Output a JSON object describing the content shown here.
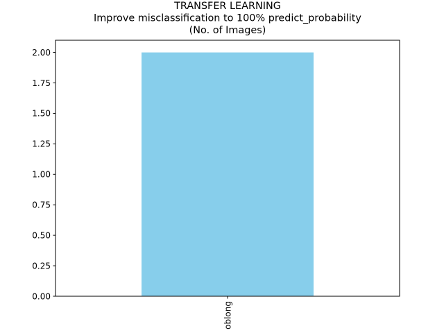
{
  "chart_data": {
    "type": "bar",
    "title_lines": [
      "TRANSFER LEARNING",
      "Improve misclassification to 100% predict_probability",
      "(No. of Images)"
    ],
    "categories": [
      "oblong"
    ],
    "values": [
      2.0
    ],
    "xlabel": "",
    "ylabel": "",
    "ylim": [
      0,
      2.1
    ],
    "yticks": [
      0.0,
      0.25,
      0.5,
      0.75,
      1.0,
      1.25,
      1.5,
      1.75,
      2.0
    ],
    "ytick_labels": [
      "0.00",
      "0.25",
      "0.50",
      "0.75",
      "1.00",
      "1.25",
      "1.50",
      "1.75",
      "2.00"
    ],
    "grid": false,
    "legend": "none",
    "bar_color": "#87ceeb"
  }
}
